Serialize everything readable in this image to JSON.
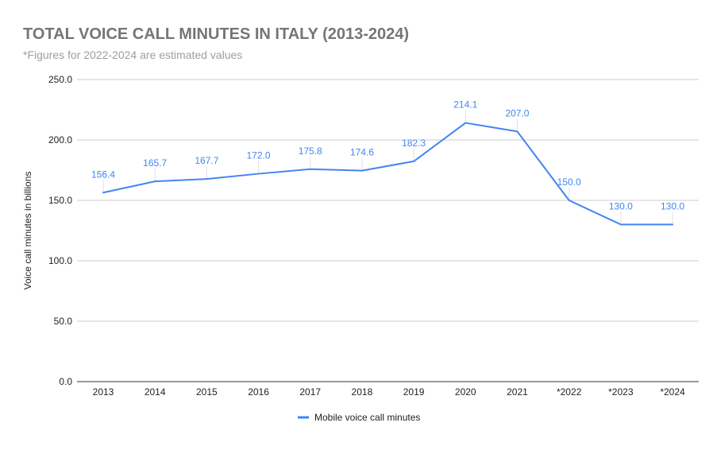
{
  "chart_data": {
    "type": "line",
    "title": "TOTAL VOICE CALL MINUTES IN ITALY (2013-2024)",
    "subtitle": "*Figures for 2022-2024 are estimated values",
    "xlabel": "",
    "ylabel": "Voice call minutes in billions",
    "ylim": [
      0,
      250
    ],
    "yticks": [
      "0.0",
      "50.0",
      "100.0",
      "150.0",
      "200.0",
      "250.0"
    ],
    "grid": true,
    "legend_position": "bottom",
    "categories": [
      "2013",
      "2014",
      "2015",
      "2016",
      "2017",
      "2018",
      "2019",
      "2020",
      "2021",
      "*2022",
      "*2023",
      "*2024"
    ],
    "series": [
      {
        "name": "Mobile voice call minutes",
        "color": "#4285F4",
        "values": [
          156.4,
          165.7,
          167.7,
          172.0,
          175.8,
          174.6,
          182.3,
          214.1,
          207.0,
          150.0,
          130.0,
          130.0
        ],
        "labels": [
          "156.4",
          "165.7",
          "167.7",
          "172.0",
          "175.8",
          "174.6",
          "182.3",
          "214.1",
          "207.0",
          "150.0",
          "130.0",
          "130.0"
        ]
      }
    ]
  }
}
